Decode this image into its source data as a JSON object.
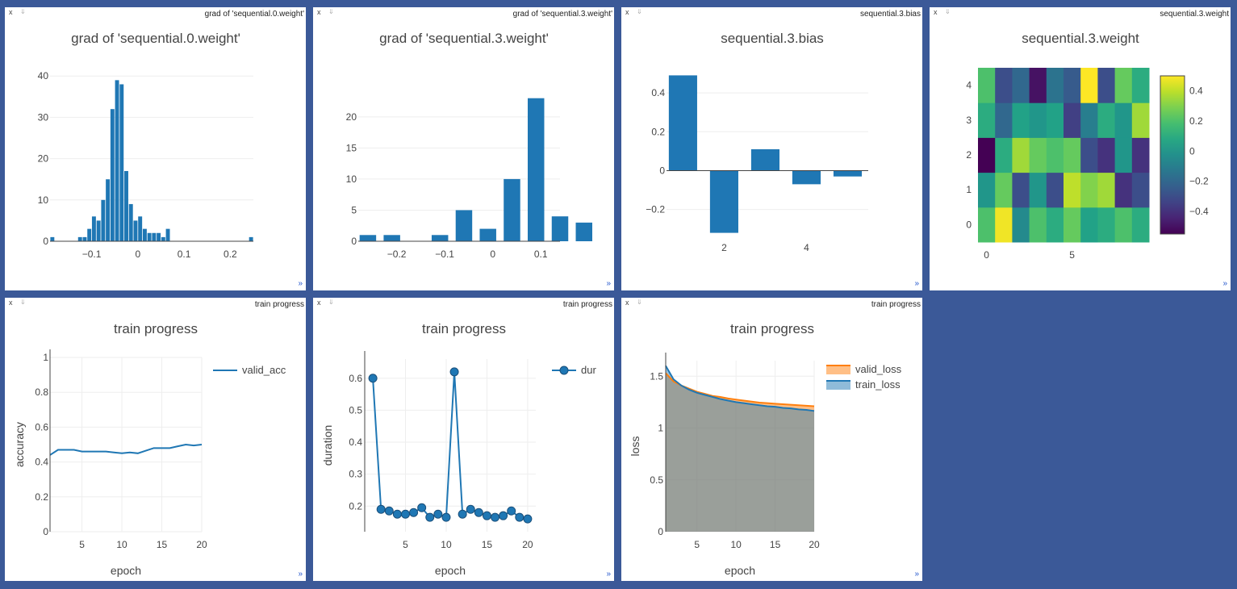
{
  "panes": [
    {
      "name": "grad of 'sequential.0.weight'",
      "chart_data": {
        "type": "bar",
        "title": "grad of 'sequential.0.weight'",
        "xlabel": "",
        "ylabel": "",
        "x": [
          -0.185,
          -0.125,
          -0.115,
          -0.105,
          -0.095,
          -0.085,
          -0.075,
          -0.065,
          -0.055,
          -0.045,
          -0.035,
          -0.025,
          -0.015,
          -0.005,
          0.005,
          0.015,
          0.025,
          0.035,
          0.045,
          0.055,
          0.065,
          0.075,
          0.085,
          0.095,
          0.105,
          0.115,
          0.125,
          0.135,
          0.145,
          0.245
        ],
        "values": [
          1,
          1,
          1,
          3,
          6,
          5,
          10,
          15,
          32,
          39,
          38,
          17,
          9,
          5,
          6,
          3,
          2,
          2,
          2,
          1,
          3,
          0,
          0,
          0,
          0,
          0,
          0,
          0,
          0,
          1
        ],
        "bar_width": 0.01,
        "xlim": [
          -0.19,
          0.25
        ],
        "ylim": [
          0,
          42
        ],
        "xticks": [
          -0.1,
          0,
          0.1,
          0.2
        ],
        "xtick_labels": [
          "−0.1",
          "0",
          "0.1",
          "0.2"
        ],
        "yticks": [
          0,
          10,
          20,
          30,
          40
        ],
        "ytick_labels": [
          "0",
          "10",
          "20",
          "30",
          "40"
        ]
      }
    },
    {
      "name": "grad of 'sequential.3.weight'",
      "chart_data": {
        "type": "bar",
        "title": "grad of 'sequential.3.weight'",
        "xlabel": "",
        "ylabel": "",
        "x": [
          -0.26,
          -0.21,
          -0.11,
          -0.06,
          -0.01,
          0.04,
          0.09,
          0.14,
          0.19
        ],
        "values": [
          1,
          1,
          1,
          5,
          2,
          10,
          23,
          4,
          3
        ],
        "bar_width": 0.04,
        "xlim": [
          -0.28,
          0.14
        ],
        "ylim": [
          0,
          24
        ],
        "xticks": [
          -0.2,
          -0.1,
          0,
          0.1
        ],
        "xtick_labels": [
          "−0.2",
          "−0.1",
          "0",
          "0.1"
        ],
        "yticks": [
          0,
          5,
          10,
          15,
          20
        ],
        "ytick_labels": [
          "0",
          "5",
          "10",
          "15",
          "20"
        ]
      }
    },
    {
      "name": "sequential.3.bias",
      "chart_data": {
        "type": "bar",
        "title": "sequential.3.bias",
        "xlabel": "",
        "ylabel": "",
        "x": [
          1,
          2,
          3,
          4,
          5
        ],
        "values": [
          0.49,
          -0.32,
          0.11,
          -0.07,
          -0.03
        ],
        "bar_width": 0.8,
        "xlim": [
          0.6,
          5.5
        ],
        "ylim": [
          -0.33,
          0.5
        ],
        "xticks": [
          2,
          4
        ],
        "xtick_labels": [
          "2",
          "4"
        ],
        "yticks": [
          -0.2,
          0,
          0.2,
          0.4
        ],
        "ytick_labels": [
          "−0.2",
          "0",
          "0.2",
          "0.4"
        ]
      }
    },
    {
      "name": "sequential.3.weight",
      "chart_data": {
        "type": "heatmap",
        "title": "sequential.3.weight",
        "colorscale": "viridis",
        "zlim": [
          -0.55,
          0.5
        ],
        "z": [
          [
            0.2,
            0.48,
            -0.05,
            0.2,
            0.1,
            0.25,
            0.05,
            0.1,
            0.2,
            0.1
          ],
          [
            0.0,
            0.25,
            -0.3,
            0.0,
            -0.3,
            0.4,
            0.3,
            0.35,
            -0.4,
            -0.3
          ],
          [
            -0.55,
            0.1,
            0.35,
            0.25,
            0.2,
            0.25,
            -0.3,
            -0.4,
            0.0,
            -0.4
          ],
          [
            0.1,
            -0.2,
            0.05,
            0.0,
            0.05,
            -0.35,
            -0.1,
            0.1,
            0.0,
            0.35
          ],
          [
            0.2,
            -0.3,
            -0.2,
            -0.5,
            -0.15,
            -0.25,
            0.5,
            -0.3,
            0.25,
            0.1
          ]
        ],
        "xticks": [
          0,
          5
        ],
        "xtick_labels": [
          "0",
          "5"
        ],
        "yticks": [
          0,
          1,
          2,
          3,
          4
        ],
        "ytick_labels": [
          "0",
          "1",
          "2",
          "3",
          "4"
        ],
        "colorbar_ticks": [
          0.4,
          0.2,
          0,
          -0.2,
          -0.4
        ],
        "colorbar_tick_labels": [
          "0.4",
          "0.2",
          "0",
          "−0.2",
          "−0.4"
        ]
      }
    },
    {
      "name": "train progress",
      "chart_data": {
        "type": "line",
        "title": "train progress",
        "xlabel": "epoch",
        "ylabel": "accuracy",
        "x": [
          1,
          2,
          3,
          4,
          5,
          6,
          7,
          8,
          9,
          10,
          11,
          12,
          13,
          14,
          15,
          16,
          17,
          18,
          19,
          20
        ],
        "series": [
          {
            "name": "valid_acc",
            "color": "#1f77b4",
            "values": [
              0.44,
              0.47,
              0.47,
              0.47,
              0.46,
              0.46,
              0.46,
              0.46,
              0.455,
              0.45,
              0.455,
              0.45,
              0.465,
              0.48,
              0.48,
              0.48,
              0.49,
              0.5,
              0.495,
              0.5
            ]
          }
        ],
        "xlim": [
          1,
          20
        ],
        "ylim": [
          0,
          1
        ],
        "xticks": [
          5,
          10,
          15,
          20
        ],
        "xtick_labels": [
          "5",
          "10",
          "15",
          "20"
        ],
        "yticks": [
          0,
          0.2,
          0.4,
          0.6,
          0.8,
          1
        ],
        "ytick_labels": [
          "0",
          "0.2",
          "0.4",
          "0.6",
          "0.8",
          "1"
        ],
        "legend": "top-right"
      }
    },
    {
      "name": "train progress",
      "chart_data": {
        "type": "line",
        "title": "train progress",
        "xlabel": "epoch",
        "ylabel": "duration",
        "x": [
          1,
          2,
          3,
          4,
          5,
          6,
          7,
          8,
          9,
          10,
          11,
          12,
          13,
          14,
          15,
          16,
          17,
          18,
          19,
          20
        ],
        "series": [
          {
            "name": "dur",
            "color": "#1f77b4",
            "markers": true,
            "values": [
              0.6,
              0.19,
              0.185,
              0.175,
              0.175,
              0.18,
              0.195,
              0.165,
              0.175,
              0.165,
              0.62,
              0.175,
              0.19,
              0.18,
              0.17,
              0.165,
              0.17,
              0.185,
              0.165,
              0.16
            ]
          }
        ],
        "xlim": [
          0,
          21
        ],
        "ylim": [
          0.12,
          0.66
        ],
        "xticks": [
          5,
          10,
          15,
          20
        ],
        "xtick_labels": [
          "5",
          "10",
          "15",
          "20"
        ],
        "yticks": [
          0.2,
          0.3,
          0.4,
          0.5,
          0.6
        ],
        "ytick_labels": [
          "0.2",
          "0.3",
          "0.4",
          "0.5",
          "0.6"
        ],
        "legend": "top-right"
      }
    },
    {
      "name": "train progress",
      "chart_data": {
        "type": "area",
        "title": "train progress",
        "xlabel": "epoch",
        "ylabel": "loss",
        "x": [
          1,
          2,
          3,
          4,
          5,
          6,
          7,
          8,
          9,
          10,
          11,
          12,
          13,
          14,
          15,
          16,
          17,
          18,
          19,
          20
        ],
        "series": [
          {
            "name": "valid_loss",
            "color": "#ff7f0e",
            "values": [
              1.53,
              1.45,
              1.41,
              1.38,
              1.35,
              1.33,
              1.31,
              1.3,
              1.285,
              1.275,
              1.265,
              1.255,
              1.245,
              1.24,
              1.235,
              1.23,
              1.225,
              1.22,
              1.215,
              1.21
            ]
          },
          {
            "name": "train_loss",
            "color": "#1f77b4",
            "values": [
              1.6,
              1.47,
              1.41,
              1.37,
              1.34,
              1.32,
              1.3,
              1.28,
              1.265,
              1.25,
              1.24,
              1.23,
              1.22,
              1.21,
              1.205,
              1.195,
              1.19,
              1.18,
              1.175,
              1.165
            ]
          }
        ],
        "xlim": [
          1,
          20
        ],
        "ylim": [
          0,
          1.65
        ],
        "xticks": [
          5,
          10,
          15,
          20
        ],
        "xtick_labels": [
          "5",
          "10",
          "15",
          "20"
        ],
        "yticks": [
          0,
          0.5,
          1,
          1.5
        ],
        "ytick_labels": [
          "0",
          "0.5",
          "1",
          "1.5"
        ],
        "legend": "top-right"
      }
    }
  ],
  "close_symbol": "x",
  "pin_symbol": "⇓",
  "resize_symbol": "»"
}
